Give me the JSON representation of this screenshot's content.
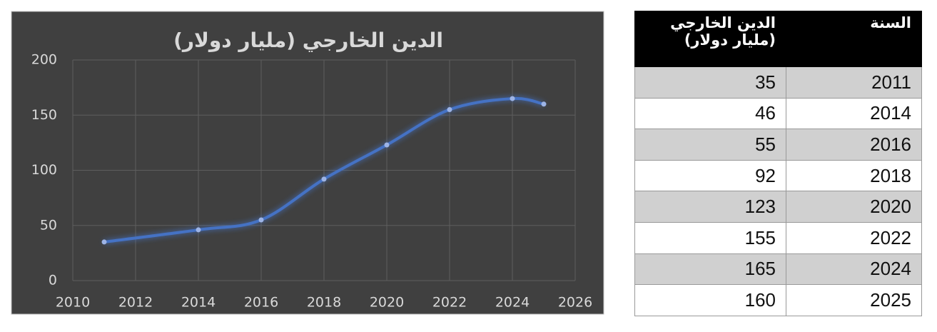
{
  "chart_data": {
    "type": "line",
    "title": "الدين الخارجي (مليار دولار)",
    "x": [
      2011,
      2014,
      2016,
      2018,
      2020,
      2022,
      2024,
      2025
    ],
    "series": [
      {
        "name": "الدين الخارجي (مليار دولار)",
        "color": "#4472c4",
        "values": [
          35,
          46,
          55,
          92,
          123,
          155,
          165,
          160
        ]
      }
    ],
    "xlim": [
      2010,
      2026
    ],
    "xticks": [
      2010,
      2012,
      2014,
      2016,
      2018,
      2020,
      2022,
      2024,
      2026
    ],
    "ylim": [
      0,
      200
    ],
    "yticks": [
      0,
      50,
      100,
      150,
      200
    ],
    "grid": true,
    "smooth": true
  },
  "table": {
    "headers": [
      "السنة",
      "الدين الخارجي (مليار دولار)"
    ],
    "rows": [
      [
        2011,
        35
      ],
      [
        2014,
        46
      ],
      [
        2016,
        55
      ],
      [
        2018,
        92
      ],
      [
        2020,
        123
      ],
      [
        2022,
        155
      ],
      [
        2024,
        165
      ],
      [
        2025,
        160
      ]
    ]
  }
}
